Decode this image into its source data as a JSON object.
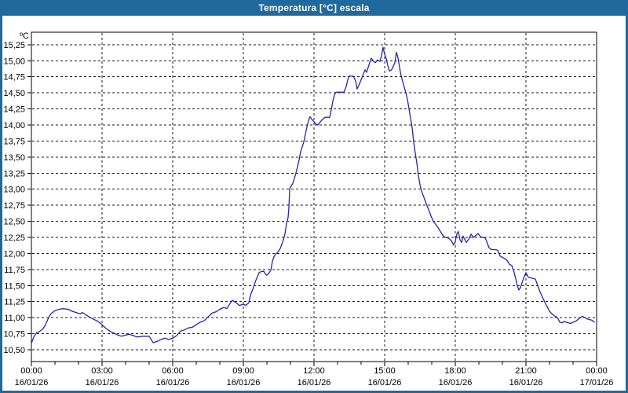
{
  "window": {
    "title": "Temperatura [°C] escala",
    "title_bar_color": "#1f699c",
    "border_color": "#1f699c",
    "background_color": "#ffffff"
  },
  "chart_data": {
    "type": "line",
    "title": "Temperatura [°C] escala",
    "y_unit": "ºC",
    "ylim": [
      10.5,
      15.25
    ],
    "y_tick_step": 0.25,
    "grid": "dashed",
    "grid_color": "#1a1a1a",
    "line_color": "#2525aa",
    "axis_color": "#000000",
    "legend": "none",
    "y_ticks": [
      "15,25",
      "15,00",
      "14,75",
      "14,50",
      "14,25",
      "14,00",
      "13,75",
      "13,50",
      "13,25",
      "13,00",
      "12,75",
      "12,50",
      "12,25",
      "12,00",
      "11,75",
      "11,50",
      "11,25",
      "11,00",
      "10,75",
      "10,50"
    ],
    "x_ticks": [
      {
        "hour": 0,
        "time": "00:00",
        "date": "16/01/26"
      },
      {
        "hour": 3,
        "time": "03:00",
        "date": "16/01/26"
      },
      {
        "hour": 6,
        "time": "06:00",
        "date": "16/01/26"
      },
      {
        "hour": 9,
        "time": "09:00",
        "date": "16/01/26"
      },
      {
        "hour": 12,
        "time": "12:00",
        "date": "16/01/26"
      },
      {
        "hour": 15,
        "time": "15:00",
        "date": "16/01/26"
      },
      {
        "hour": 18,
        "time": "18:00",
        "date": "16/01/26"
      },
      {
        "hour": 21,
        "time": "21:00",
        "date": "16/01/26"
      },
      {
        "hour": 24,
        "time": "00:00",
        "date": "17/01/26"
      }
    ],
    "x_minor_tick_every_hours": 1,
    "series": [
      {
        "name": "Temperatura",
        "x_hours": [
          0,
          0.1,
          0.23,
          0.33,
          0.5,
          0.6,
          0.73,
          0.83,
          1,
          1.17,
          1.33,
          1.57,
          1.73,
          1.9,
          2.07,
          2.17,
          2.33,
          2.5,
          2.67,
          2.83,
          3,
          3.17,
          3.33,
          3.5,
          3.67,
          3.83,
          4,
          4.17,
          4.33,
          4.5,
          4.73,
          5,
          5.17,
          5.33,
          5.5,
          5.67,
          5.83,
          6,
          6.17,
          6.33,
          6.5,
          6.67,
          6.83,
          7,
          7.17,
          7.33,
          7.5,
          7.67,
          7.83,
          8,
          8.17,
          8.3,
          8.43,
          8.53,
          8.67,
          8.77,
          8.83,
          8.93,
          9,
          9.1,
          9.23,
          9.27,
          9.33,
          9.4,
          9.47,
          9.53,
          9.6,
          9.67,
          9.77,
          9.87,
          9.93,
          10,
          10.1,
          10.17,
          10.23,
          10.3,
          10.37,
          10.47,
          10.57,
          10.63,
          10.7,
          10.77,
          10.83,
          10.9,
          10.93,
          10.97,
          11.03,
          11.1,
          11.17,
          11.23,
          11.3,
          11.37,
          11.43,
          11.5,
          11.57,
          11.63,
          11.7,
          11.77,
          11.83,
          11.9,
          12,
          12.1,
          12.17,
          12.27,
          12.37,
          12.47,
          12.67,
          12.73,
          12.8,
          12.87,
          12.93,
          13.1,
          13.27,
          13.37,
          13.43,
          13.5,
          13.67,
          13.77,
          13.83,
          13.93,
          14.03,
          14.1,
          14.17,
          14.23,
          14.33,
          14.43,
          14.53,
          14.6,
          14.7,
          14.8,
          14.87,
          14.93,
          15,
          15.07,
          15.13,
          15.2,
          15.27,
          15.33,
          15.43,
          15.5,
          15.57,
          15.6,
          15.67,
          15.73,
          15.8,
          15.87,
          15.93,
          16,
          16.07,
          16.17,
          16.23,
          16.3,
          16.37,
          16.43,
          16.5,
          16.57,
          16.67,
          16.77,
          16.87,
          16.97,
          17.07,
          17.17,
          17.27,
          17.37,
          17.47,
          17.57,
          17.7,
          17.83,
          17.93,
          18,
          18.07,
          18.13,
          18.2,
          18.27,
          18.33,
          18.4,
          18.47,
          18.57,
          18.67,
          18.77,
          18.87,
          18.97,
          19.07,
          19.17,
          19.27,
          19.33,
          19.43,
          19.53,
          19.67,
          19.8,
          19.9,
          20,
          20.1,
          20.2,
          20.3,
          20.4,
          20.5,
          20.57,
          20.63,
          20.7,
          20.77,
          20.83,
          20.93,
          21,
          21.1,
          21.2,
          21.3,
          21.4,
          21.5,
          21.6,
          21.7,
          21.8,
          21.9,
          22,
          22.1,
          22.2,
          22.3,
          22.37,
          22.43,
          22.53,
          22.63,
          22.7,
          22.8,
          22.9,
          23,
          23.1,
          23.2,
          23.3,
          23.4,
          23.5,
          23.6,
          23.7,
          23.8,
          23.9
        ],
        "values": [
          10.6,
          10.7,
          10.77,
          10.78,
          10.83,
          10.89,
          11,
          11.06,
          11.11,
          11.13,
          11.14,
          11.13,
          11.1,
          11.08,
          11.06,
          11.08,
          11.04,
          11,
          10.97,
          10.94,
          10.89,
          10.83,
          10.79,
          10.76,
          10.73,
          10.71,
          10.73,
          10.74,
          10.72,
          10.7,
          10.71,
          10.71,
          10.61,
          10.63,
          10.66,
          10.68,
          10.66,
          10.68,
          10.72,
          10.79,
          10.81,
          10.84,
          10.85,
          10.89,
          10.93,
          10.95,
          11.01,
          11.07,
          11.09,
          11.13,
          11.16,
          11.14,
          11.22,
          11.27,
          11.24,
          11.21,
          11.19,
          11.2,
          11.21,
          11.19,
          11.23,
          11.3,
          11.38,
          11.44,
          11.52,
          11.58,
          11.64,
          11.7,
          11.72,
          11.72,
          11.68,
          11.66,
          11.7,
          11.74,
          11.87,
          11.95,
          11.99,
          12.02,
          12.08,
          12.14,
          12.21,
          12.31,
          12.46,
          12.56,
          12.7,
          13.01,
          13.05,
          13.09,
          13.17,
          13.25,
          13.35,
          13.46,
          13.58,
          13.66,
          13.74,
          13.85,
          13.97,
          14.07,
          14.13,
          14.09,
          14.05,
          14.01,
          14,
          14.05,
          14.09,
          14.12,
          14.12,
          14.23,
          14.37,
          14.47,
          14.51,
          14.51,
          14.51,
          14.6,
          14.7,
          14.76,
          14.76,
          14.68,
          14.56,
          14.64,
          14.73,
          14.8,
          14.86,
          14.82,
          14.93,
          15.04,
          14.99,
          14.97,
          15.01,
          14.99,
          15.08,
          15.21,
          15.1,
          15.03,
          14.93,
          14.84,
          14.85,
          14.88,
          14.97,
          15.13,
          15.04,
          14.97,
          14.82,
          14.72,
          14.63,
          14.54,
          14.46,
          14.33,
          14.17,
          13.95,
          13.74,
          13.56,
          13.4,
          13.22,
          13.07,
          12.97,
          12.87,
          12.77,
          12.68,
          12.58,
          12.5,
          12.45,
          12.4,
          12.34,
          12.28,
          12.25,
          12.24,
          12.2,
          12.13,
          12.19,
          12.31,
          12.34,
          12.21,
          12.17,
          12.27,
          12.22,
          12.17,
          12.22,
          12.3,
          12.25,
          12.28,
          12.31,
          12.26,
          12.25,
          12.24,
          12.19,
          12.09,
          12.06,
          12.06,
          12.05,
          11.96,
          11.94,
          11.92,
          11.89,
          11.83,
          11.81,
          11.7,
          11.6,
          11.5,
          11.43,
          11.47,
          11.54,
          11.64,
          11.7,
          11.63,
          11.62,
          11.61,
          11.6,
          11.5,
          11.4,
          11.32,
          11.24,
          11.17,
          11.1,
          11.06,
          11.03,
          11.01,
          10.98,
          10.93,
          10.92,
          10.94,
          10.93,
          10.92,
          10.91,
          10.93,
          10.94,
          10.97,
          11,
          11.02,
          11,
          10.98,
          10.97,
          10.96,
          10.93
        ]
      }
    ]
  }
}
